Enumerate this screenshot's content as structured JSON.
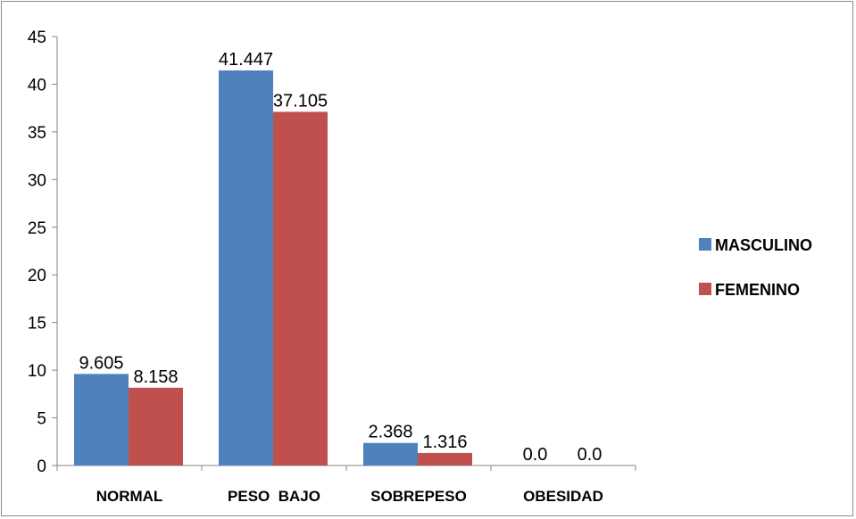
{
  "chart_data": {
    "type": "bar",
    "title": "",
    "xlabel": "",
    "ylabel": "",
    "categories": [
      "NORMAL",
      "PESO  BAJO",
      "SOBREPESO",
      "OBESIDAD"
    ],
    "series": [
      {
        "name": "MASCULINO",
        "color": "#4f81bd",
        "values": [
          9.605,
          41.447,
          2.368,
          0.0
        ],
        "labels": [
          "9.605",
          "41.447",
          "2.368",
          "0.0"
        ]
      },
      {
        "name": "FEMENINO",
        "color": "#c0504d",
        "values": [
          8.158,
          37.105,
          1.316,
          0.0
        ],
        "labels": [
          "8.158",
          "37.105",
          "1.316",
          "0.0"
        ]
      }
    ],
    "ylim": [
      0,
      45
    ],
    "yticks": [
      0,
      5,
      10,
      15,
      20,
      25,
      30,
      35,
      40,
      45
    ],
    "grid": false,
    "legend_position": "right"
  }
}
